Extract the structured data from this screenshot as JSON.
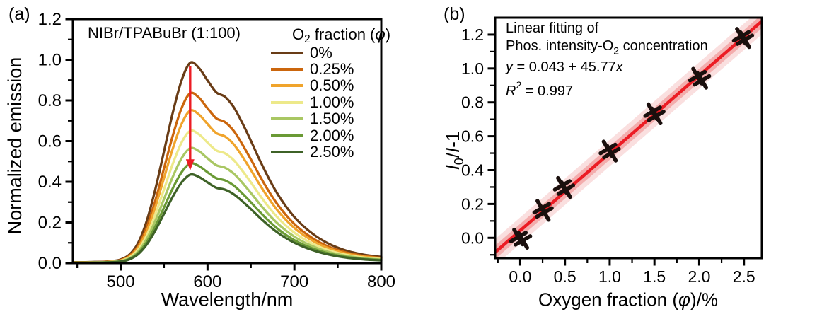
{
  "panel_a": {
    "label": "(a)",
    "title": "NIBr/TPABuBr (1:100)",
    "xlabel": "Wavelength/nm",
    "ylabel": "Normalized emission",
    "legend_title": {
      "pre": "O",
      "sub": "2",
      "mid": " fraction (",
      "phi": "φ",
      "post": ")"
    }
  },
  "panel_b": {
    "label": "(b)",
    "xlabel": {
      "pre": "Oxygen fraction (",
      "phi": "φ",
      "post": ")/%"
    },
    "ylabel": {
      "i1": "I",
      "sub": "0",
      "mid": "/",
      "i2": "I",
      "post": "-1"
    },
    "annotation": {
      "line1": "Linear fitting of",
      "line2_pre": "Phos. intensity-O",
      "line2_sub": "2",
      "line2_post": " concentration",
      "eq_y": "y",
      "eq_mid": " = 0.043 + 45.77",
      "eq_x": "x",
      "r2_r": "R",
      "r2_sup": "2",
      "r2_rest": " = 0.997"
    }
  },
  "chart_data": [
    {
      "type": "line",
      "panel": "a",
      "title": "NIBr/TPABuBr (1:100)",
      "xlabel": "Wavelength/nm",
      "ylabel": "Normalized emission",
      "xlim": [
        445,
        800
      ],
      "ylim": [
        0,
        1.2
      ],
      "grid": false,
      "legend_position": "upper-right",
      "xticks": {
        "major": [
          500,
          600,
          700,
          800
        ],
        "labels": [
          "500",
          "600",
          "700",
          "800"
        ],
        "minor": [
          450,
          550,
          650,
          750
        ]
      },
      "yticks": {
        "major": [
          0,
          0.2,
          0.4,
          0.6,
          0.8,
          1.0,
          1.2
        ],
        "labels": [
          "0.0",
          "0.2",
          "0.4",
          "0.6",
          "0.8",
          "1.0",
          "1.2"
        ],
        "minor": [
          0.1,
          0.3,
          0.5,
          0.7,
          0.9,
          1.1
        ]
      },
      "wavelengths": [
        445,
        450,
        460,
        470,
        480,
        490,
        500,
        510,
        520,
        530,
        540,
        550,
        560,
        570,
        580,
        590,
        600,
        610,
        620,
        630,
        640,
        650,
        660,
        670,
        680,
        690,
        700,
        710,
        720,
        730,
        740,
        750,
        760,
        770,
        780,
        790,
        800
      ],
      "emission_shape_normalized": [
        0.005,
        0.005,
        0.005,
        0.006,
        0.007,
        0.01,
        0.018,
        0.042,
        0.1,
        0.21,
        0.37,
        0.56,
        0.75,
        0.91,
        1.0,
        0.975,
        0.912,
        0.853,
        0.831,
        0.78,
        0.7,
        0.61,
        0.515,
        0.428,
        0.35,
        0.285,
        0.23,
        0.186,
        0.15,
        0.12,
        0.096,
        0.077,
        0.062,
        0.051,
        0.042,
        0.036,
        0.031
      ],
      "peak_wavelength_nm": 580,
      "series": [
        {
          "label": "0%",
          "color": "#693C16",
          "peak": 0.985
        },
        {
          "label": "0.25%",
          "color": "#CB660D",
          "peak": 0.835
        },
        {
          "label": "0.50%",
          "color": "#F0A42C",
          "peak": 0.75
        },
        {
          "label": "1.00%",
          "color": "#EDE98A",
          "peak": 0.65
        },
        {
          "label": "1.50%",
          "color": "#A9C763",
          "peak": 0.565
        },
        {
          "label": "2.00%",
          "color": "#6A9A35",
          "peak": 0.49
        },
        {
          "label": "2.50%",
          "color": "#3E6227",
          "peak": 0.435
        }
      ],
      "arrow": {
        "x": 580,
        "y_from": 0.97,
        "y_to": 0.455,
        "color": "#EC1C24"
      }
    },
    {
      "type": "scatter",
      "panel": "b",
      "xlabel_text": "Oxygen fraction (φ)/%",
      "ylabel_text": "I0/I-1",
      "xlim": [
        -0.28,
        2.7
      ],
      "ylim": [
        -0.12,
        1.3
      ],
      "grid": false,
      "xticks": {
        "major": [
          0,
          0.5,
          1.0,
          1.5,
          2.0,
          2.5
        ],
        "labels": [
          "0.0",
          "0.5",
          "1.0",
          "1.5",
          "2.0",
          "2.5"
        ],
        "minor": [
          -0.25,
          0.25,
          0.75,
          1.25,
          1.75,
          2.25
        ]
      },
      "yticks": {
        "major": [
          0,
          0.2,
          0.4,
          0.6,
          0.8,
          1.0,
          1.2
        ],
        "labels": [
          "0.0",
          "0.2",
          "0.4",
          "0.6",
          "0.8",
          "1.0",
          "1.2"
        ],
        "minor": [
          -0.1,
          0.1,
          0.3,
          0.5,
          0.7,
          0.9,
          1.1
        ]
      },
      "points": [
        [
          -0.02,
          0.005
        ],
        [
          0.03,
          -0.015
        ],
        [
          0.24,
          0.175
        ],
        [
          0.27,
          0.15
        ],
        [
          0.47,
          0.31
        ],
        [
          0.51,
          0.285
        ],
        [
          0.98,
          0.525
        ],
        [
          1.02,
          0.5
        ],
        [
          1.48,
          0.745
        ],
        [
          1.52,
          0.72
        ],
        [
          1.98,
          0.955
        ],
        [
          2.03,
          0.93
        ],
        [
          2.47,
          1.19
        ],
        [
          2.51,
          1.17
        ]
      ],
      "marker": {
        "shape": "x",
        "color": "#1A0F0D",
        "half_size": 8.5,
        "stroke_width": 5.5,
        "rotation_deg": 15
      },
      "fit": {
        "equation": "y = 0.043 + 45.77x",
        "intercept": 0.043,
        "slope_per_percent": 0.4577,
        "r_squared": 0.997,
        "line_color": "#EC1C24",
        "band_inner_halfwidth": 0.04,
        "band_outer_halfwidth": 0.078,
        "band_inner_color": "#F3ADAD",
        "band_outer_color": "#FADFDF"
      }
    }
  ]
}
